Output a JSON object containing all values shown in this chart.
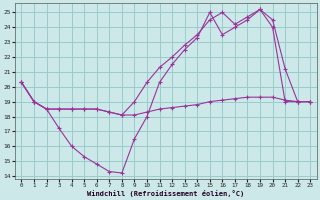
{
  "xlabel": "Windchill (Refroidissement éolien,°C)",
  "background_color": "#cce8e8",
  "grid_color": "#99cccc",
  "line_color": "#993399",
  "xlim": [
    -0.5,
    23.5
  ],
  "ylim": [
    13.8,
    25.6
  ],
  "yticks": [
    14,
    15,
    16,
    17,
    18,
    19,
    20,
    21,
    22,
    23,
    24,
    25
  ],
  "xticks": [
    0,
    1,
    2,
    3,
    4,
    5,
    6,
    7,
    8,
    9,
    10,
    11,
    12,
    13,
    14,
    15,
    16,
    17,
    18,
    19,
    20,
    21,
    22,
    23
  ],
  "line1_x": [
    0,
    1,
    2,
    3,
    4,
    5,
    6,
    7,
    8,
    9,
    10,
    11,
    12,
    13,
    14,
    15,
    16,
    17,
    18,
    19,
    20,
    21,
    22,
    23
  ],
  "line1_y": [
    20.3,
    19.0,
    18.5,
    18.5,
    18.5,
    18.5,
    18.5,
    18.3,
    18.1,
    18.1,
    18.3,
    18.5,
    18.6,
    18.7,
    18.8,
    19.0,
    19.1,
    19.2,
    19.3,
    19.3,
    19.3,
    19.1,
    19.0,
    19.0
  ],
  "line2_x": [
    0,
    1,
    2,
    3,
    4,
    5,
    6,
    7,
    8,
    9,
    10,
    11,
    12,
    13,
    14,
    15,
    16,
    17,
    18,
    19,
    20,
    21,
    22,
    23
  ],
  "line2_y": [
    20.3,
    19.0,
    18.5,
    17.2,
    16.0,
    15.3,
    14.8,
    14.3,
    14.2,
    16.5,
    18.0,
    20.3,
    21.5,
    22.5,
    23.3,
    25.0,
    23.5,
    24.0,
    24.5,
    25.2,
    24.0,
    19.0,
    19.0,
    19.0
  ],
  "line3_x": [
    0,
    1,
    2,
    3,
    4,
    5,
    6,
    7,
    8,
    9,
    10,
    11,
    12,
    13,
    14,
    15,
    16,
    17,
    18,
    19,
    20,
    21,
    22,
    23
  ],
  "line3_y": [
    20.3,
    19.0,
    18.5,
    18.5,
    18.5,
    18.5,
    18.5,
    18.3,
    18.1,
    19.0,
    20.3,
    21.3,
    22.0,
    22.8,
    23.5,
    24.5,
    25.0,
    24.2,
    24.7,
    25.2,
    24.5,
    21.2,
    19.0,
    19.0
  ]
}
